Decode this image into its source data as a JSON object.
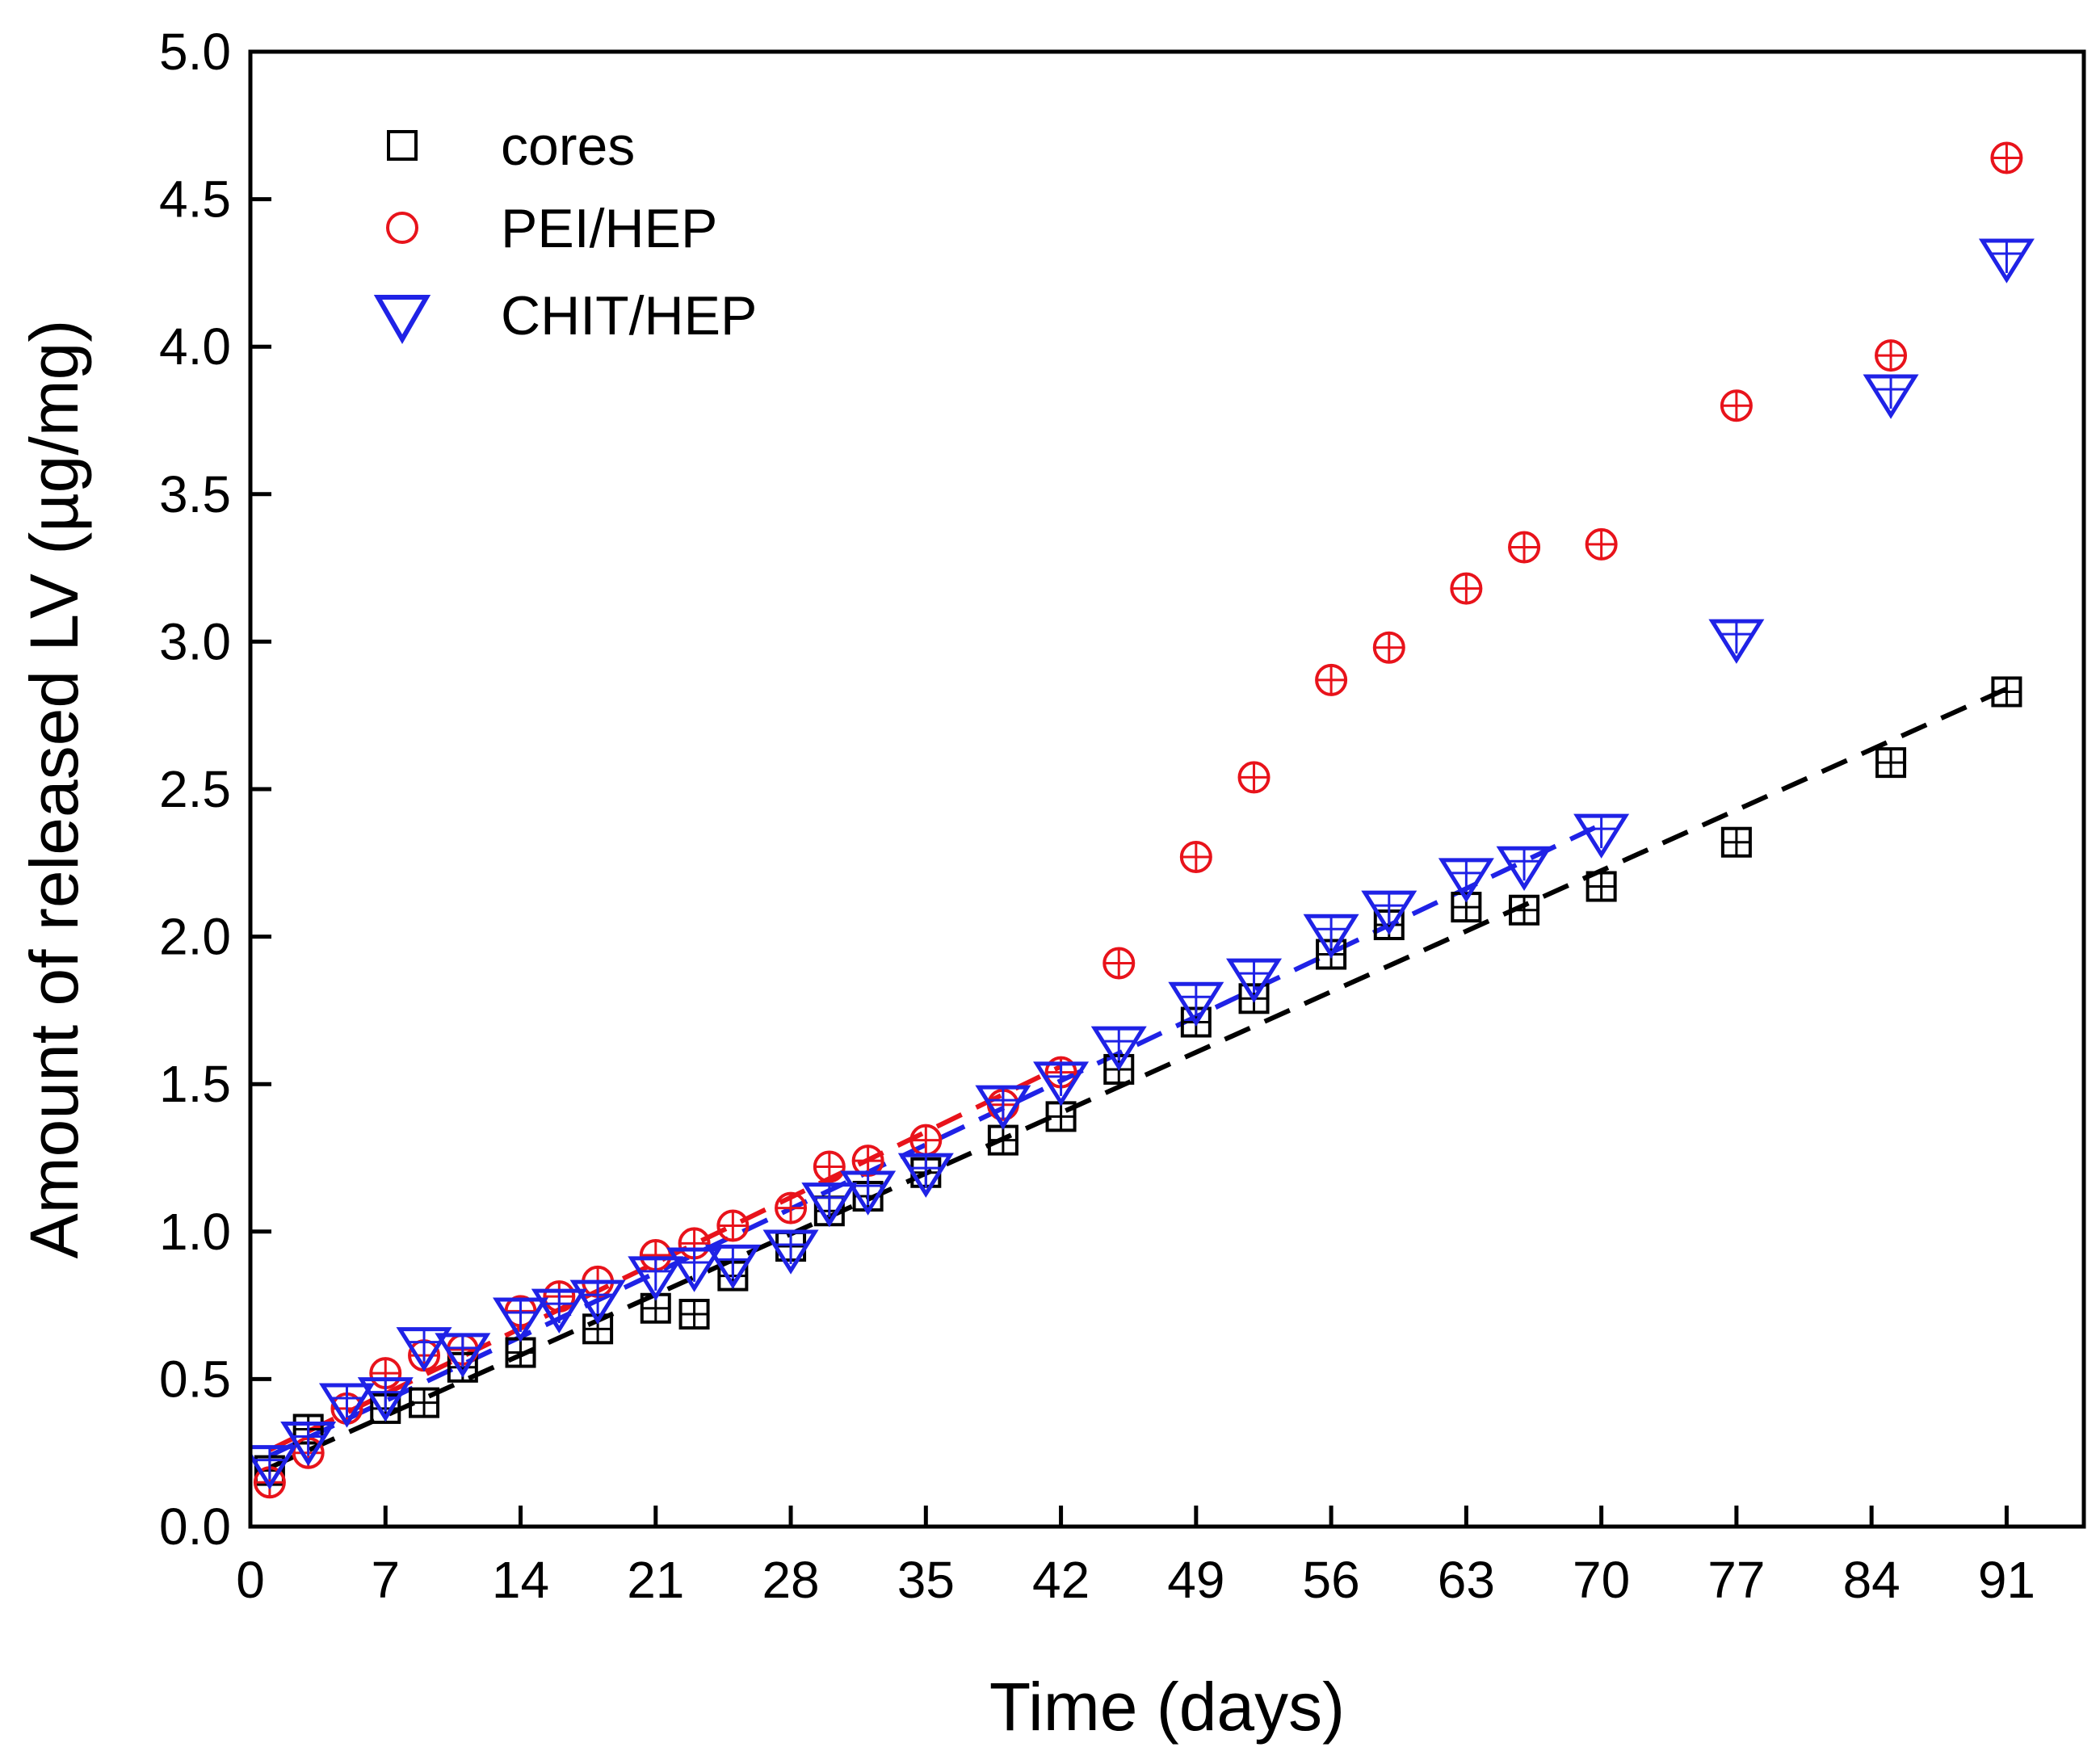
{
  "chart_data": {
    "type": "scatter",
    "title": "",
    "xlabel": "Time (days)",
    "ylabel": "Amount of released LV (µg/mg)",
    "xlim": [
      0,
      95
    ],
    "ylim": [
      0,
      5
    ],
    "x_ticks": [
      0,
      7,
      14,
      21,
      28,
      35,
      42,
      49,
      56,
      63,
      70,
      77,
      84,
      91
    ],
    "x_tick_labels": [
      "0",
      "7",
      "14",
      "21",
      "28",
      "35",
      "42",
      "49",
      "56",
      "63",
      "70",
      "77",
      "84",
      "91"
    ],
    "y_ticks": [
      0,
      0.5,
      1,
      1.5,
      2,
      2.5,
      3,
      3.5,
      4,
      4.5,
      5
    ],
    "y_tick_labels": [
      "0.0",
      "0.5",
      "1.0",
      "1.5",
      "2.0",
      "2.5",
      "3.0",
      "3.5",
      "4.0",
      "4.5",
      "5.0"
    ],
    "grid": false,
    "legend_position": "top-left",
    "series": [
      {
        "name": "cores",
        "marker": "square",
        "color": "#000000",
        "x": [
          1,
          3,
          7,
          9,
          11,
          14,
          18,
          21,
          23,
          25,
          28,
          30,
          32,
          35,
          39,
          42,
          45,
          49,
          52,
          56,
          59,
          63,
          66,
          70,
          77,
          85,
          91
        ],
        "y": [
          0.19,
          0.33,
          0.4,
          0.42,
          0.54,
          0.59,
          0.67,
          0.74,
          0.72,
          0.85,
          0.95,
          1.07,
          1.12,
          1.2,
          1.31,
          1.39,
          1.55,
          1.71,
          1.79,
          1.94,
          2.04,
          2.1,
          2.09,
          2.17,
          2.32,
          2.59,
          2.83
        ],
        "fit": {
          "style": "dashed",
          "color": "#000000",
          "x": [
            1,
            91
          ],
          "y": [
            0.2,
            2.84
          ]
        }
      },
      {
        "name": "PEI/HEP",
        "marker": "circle",
        "color": "#e8131b",
        "x": [
          1,
          3,
          5,
          7,
          9,
          11,
          14,
          16,
          18,
          21,
          23,
          25,
          28,
          30,
          32,
          35,
          39,
          42,
          45,
          49,
          52,
          56,
          59,
          63,
          66,
          70,
          77,
          85,
          91
        ],
        "y": [
          0.15,
          0.25,
          0.4,
          0.52,
          0.58,
          0.6,
          0.73,
          0.78,
          0.83,
          0.92,
          0.96,
          1.02,
          1.08,
          1.22,
          1.24,
          1.31,
          1.43,
          1.54,
          1.91,
          2.27,
          2.54,
          2.87,
          2.98,
          3.18,
          3.32,
          3.33,
          3.8,
          3.97,
          4.64
        ],
        "fit": {
          "style": "dashed",
          "color": "#e8131b",
          "x": [
            1,
            42
          ],
          "y": [
            0.26,
            1.56
          ]
        }
      },
      {
        "name": "CHIT/HEP",
        "marker": "triangle-down",
        "color": "#1f22e6",
        "x": [
          1,
          3,
          5,
          7,
          9,
          11,
          14,
          16,
          18,
          21,
          23,
          25,
          28,
          30,
          32,
          35,
          39,
          42,
          45,
          49,
          52,
          56,
          59,
          63,
          66,
          70,
          77,
          85,
          91
        ],
        "y": [
          0.22,
          0.3,
          0.43,
          0.45,
          0.62,
          0.6,
          0.72,
          0.75,
          0.78,
          0.86,
          0.89,
          0.9,
          0.95,
          1.11,
          1.15,
          1.21,
          1.44,
          1.52,
          1.64,
          1.79,
          1.87,
          2.02,
          2.1,
          2.21,
          2.25,
          2.36,
          3.02,
          3.85,
          4.31
        ],
        "fit": {
          "style": "dashed",
          "color": "#1f22e6",
          "x": [
            1,
            70
          ],
          "y": [
            0.24,
            2.38
          ]
        }
      }
    ]
  }
}
